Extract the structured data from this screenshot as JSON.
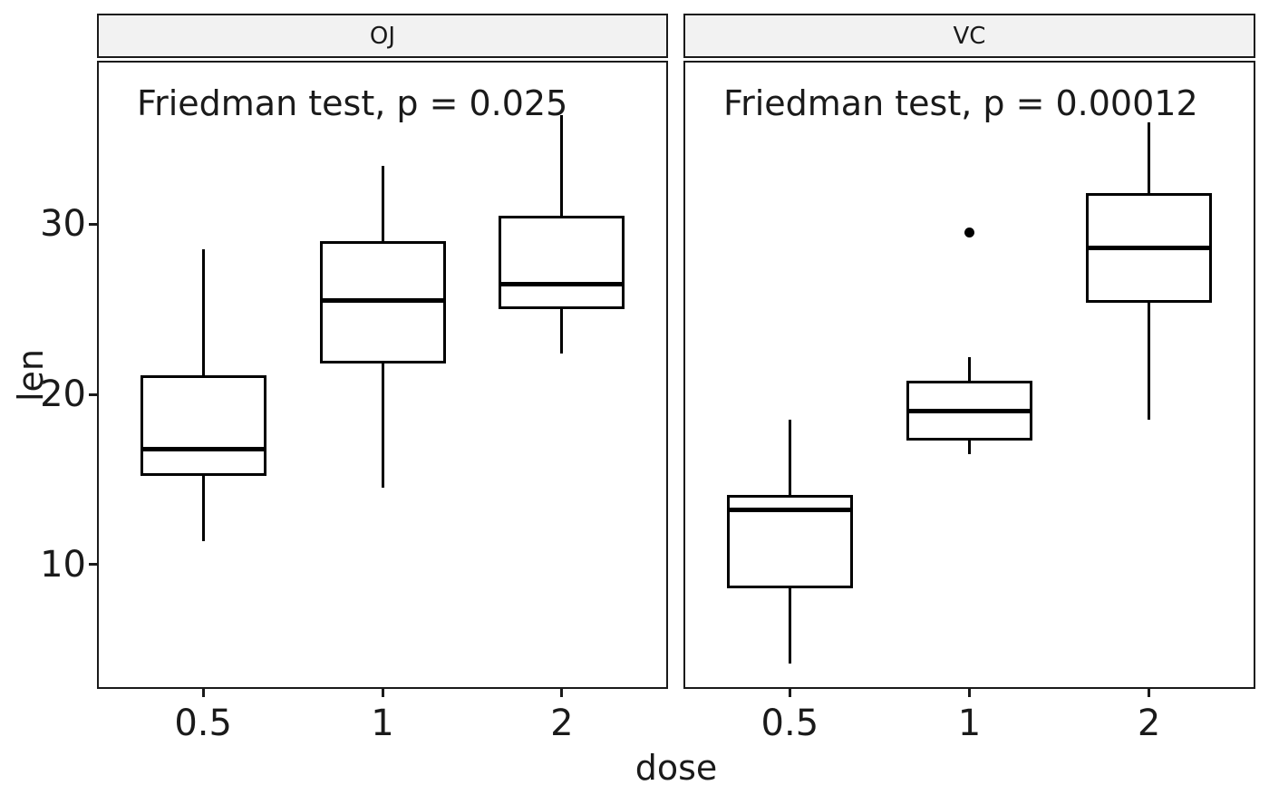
{
  "chart_data": {
    "type": "boxplot",
    "title": "",
    "xlabel": "dose",
    "ylabel": "len",
    "categories": [
      "0.5",
      "1",
      "2"
    ],
    "y_ticks": [
      10,
      20,
      30
    ],
    "ylim": [
      2.7,
      39.6
    ],
    "grid": false,
    "legend": "none",
    "facets": [
      {
        "label": "OJ",
        "annotation": "Friedman test, p = 0.025",
        "boxes": [
          {
            "category": "0.5",
            "min": 11.4,
            "q1": 15.2,
            "median": 16.8,
            "q3": 21.1,
            "max": 28.5,
            "outliers": []
          },
          {
            "category": "1",
            "min": 14.5,
            "q1": 21.8,
            "median": 25.5,
            "q3": 29.0,
            "max": 33.4,
            "outliers": []
          },
          {
            "category": "2",
            "min": 22.4,
            "q1": 25.0,
            "median": 26.5,
            "q3": 30.5,
            "max": 36.4,
            "outliers": []
          }
        ]
      },
      {
        "label": "VC",
        "annotation": "Friedman test, p = 0.00012",
        "boxes": [
          {
            "category": "0.5",
            "min": 4.2,
            "q1": 8.6,
            "median": 13.2,
            "q3": 14.1,
            "max": 18.5,
            "outliers": []
          },
          {
            "category": "1",
            "min": 16.5,
            "q1": 17.3,
            "median": 19.0,
            "q3": 20.8,
            "max": 22.2,
            "outliers": [
              29.5
            ]
          },
          {
            "category": "2",
            "min": 18.5,
            "q1": 25.4,
            "median": 28.6,
            "q3": 31.8,
            "max": 36.0,
            "outliers": []
          }
        ]
      }
    ],
    "colors": {
      "stroke": "#000000",
      "box_fill": "#ffffff",
      "strip_fill": "#f2f2f2",
      "text": "#1a1a1a"
    }
  }
}
